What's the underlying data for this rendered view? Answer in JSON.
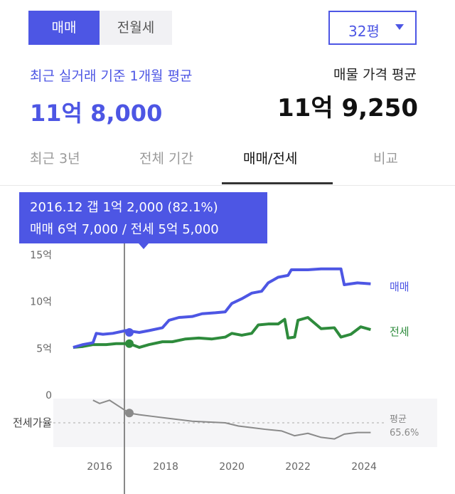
{
  "deal_toggle": {
    "sale": "매매",
    "jeonse_monthly": "전월세",
    "selected": "sale"
  },
  "size_select": {
    "value": "32평",
    "icon": "caret-down-icon"
  },
  "recent": {
    "label": "최근 실거래 기준 1개월 평균",
    "price": "11억 8,000"
  },
  "listing": {
    "label": "매물 가격 평균",
    "price": "11억 9,250"
  },
  "tabs": [
    {
      "label": "최근 3년",
      "active": false
    },
    {
      "label": "전체 기간",
      "active": false
    },
    {
      "label": "매매/전세",
      "active": true
    },
    {
      "label": "비교",
      "active": false
    }
  ],
  "tooltip": {
    "line1": "2016.12  갭 1억 2,000 (82.1%)",
    "line2": "매매 6억 7,000 / 전세 5억 5,000"
  },
  "colors": {
    "accent": "#4d56e4",
    "sale": "#4d56e4",
    "jeonse": "#2e8b3c",
    "ratio": "#8a8a8a"
  },
  "chart_data": {
    "type": "line",
    "yticks": [
      "15억",
      "10억",
      "5억",
      "0"
    ],
    "ytick_values": [
      15,
      10,
      5,
      0
    ],
    "xticks": [
      "2016",
      "2018",
      "2020",
      "2022",
      "2024"
    ],
    "xtick_values": [
      2016,
      2018,
      2020,
      2022,
      2024
    ],
    "ylim": [
      0,
      15
    ],
    "xlim": [
      2014.6,
      2024.6
    ],
    "grid": false,
    "legend": "right-end labels",
    "series": [
      {
        "name": "매매",
        "points": [
          [
            2015.2,
            5.1
          ],
          [
            2015.5,
            5.4
          ],
          [
            2015.8,
            5.6
          ],
          [
            2015.9,
            6.6
          ],
          [
            2016.1,
            6.5
          ],
          [
            2016.4,
            6.6
          ],
          [
            2016.8,
            6.9
          ],
          [
            2017.2,
            6.7
          ],
          [
            2017.5,
            6.9
          ],
          [
            2017.9,
            7.2
          ],
          [
            2018.1,
            8.0
          ],
          [
            2018.4,
            8.3
          ],
          [
            2018.8,
            8.4
          ],
          [
            2019.1,
            8.7
          ],
          [
            2019.5,
            8.8
          ],
          [
            2019.8,
            8.9
          ],
          [
            2020.0,
            9.8
          ],
          [
            2020.3,
            10.3
          ],
          [
            2020.6,
            10.9
          ],
          [
            2020.9,
            11.1
          ],
          [
            2021.1,
            12.0
          ],
          [
            2021.4,
            12.6
          ],
          [
            2021.7,
            12.8
          ],
          [
            2021.8,
            13.4
          ],
          [
            2022.3,
            13.4
          ],
          [
            2022.7,
            13.5
          ],
          [
            2023.0,
            13.5
          ],
          [
            2023.3,
            13.5
          ],
          [
            2023.4,
            11.8
          ],
          [
            2023.8,
            12.0
          ],
          [
            2024.2,
            11.9
          ]
        ]
      },
      {
        "name": "전세",
        "points": [
          [
            2015.2,
            5.1
          ],
          [
            2015.5,
            5.2
          ],
          [
            2015.8,
            5.4
          ],
          [
            2016.2,
            5.4
          ],
          [
            2016.5,
            5.5
          ],
          [
            2016.9,
            5.5
          ],
          [
            2017.2,
            5.1
          ],
          [
            2017.5,
            5.4
          ],
          [
            2017.9,
            5.7
          ],
          [
            2018.2,
            5.7
          ],
          [
            2018.6,
            6.0
          ],
          [
            2019.0,
            6.1
          ],
          [
            2019.4,
            6.0
          ],
          [
            2019.8,
            6.2
          ],
          [
            2020.0,
            6.6
          ],
          [
            2020.3,
            6.4
          ],
          [
            2020.6,
            6.6
          ],
          [
            2020.8,
            7.5
          ],
          [
            2021.1,
            7.6
          ],
          [
            2021.4,
            7.6
          ],
          [
            2021.6,
            8.1
          ],
          [
            2021.7,
            6.1
          ],
          [
            2021.9,
            6.2
          ],
          [
            2022.0,
            8.0
          ],
          [
            2022.3,
            8.3
          ],
          [
            2022.7,
            7.1
          ],
          [
            2023.1,
            7.2
          ],
          [
            2023.3,
            6.2
          ],
          [
            2023.6,
            6.5
          ],
          [
            2023.9,
            7.3
          ],
          [
            2024.2,
            7.0
          ]
        ]
      },
      {
        "name": "전세가율",
        "points": [
          [
            2015.8,
            98
          ],
          [
            2016.0,
            94
          ],
          [
            2016.3,
            98
          ],
          [
            2016.6,
            90
          ],
          [
            2016.9,
            82
          ],
          [
            2017.2,
            80
          ],
          [
            2017.6,
            78
          ],
          [
            2018.0,
            76
          ],
          [
            2018.4,
            74
          ],
          [
            2018.8,
            72
          ],
          [
            2019.3,
            71
          ],
          [
            2019.8,
            70
          ],
          [
            2020.2,
            66
          ],
          [
            2020.6,
            64
          ],
          [
            2021.0,
            62
          ],
          [
            2021.5,
            60
          ],
          [
            2021.9,
            54
          ],
          [
            2022.3,
            57
          ],
          [
            2022.7,
            52
          ],
          [
            2023.1,
            50
          ],
          [
            2023.4,
            56
          ],
          [
            2023.8,
            58
          ],
          [
            2024.2,
            58
          ]
        ]
      }
    ],
    "highlight": {
      "x": 2016.9,
      "sale": 6.7,
      "jeonse": 5.5,
      "ratio": 82.1
    },
    "ratio_panel": {
      "label": "전세가율",
      "avg_label": "평균",
      "avg_value": "65.6%",
      "avg": 65.6,
      "ylim": [
        40,
        100
      ]
    },
    "end_labels": {
      "sale": "매매",
      "jeonse": "전세"
    }
  }
}
